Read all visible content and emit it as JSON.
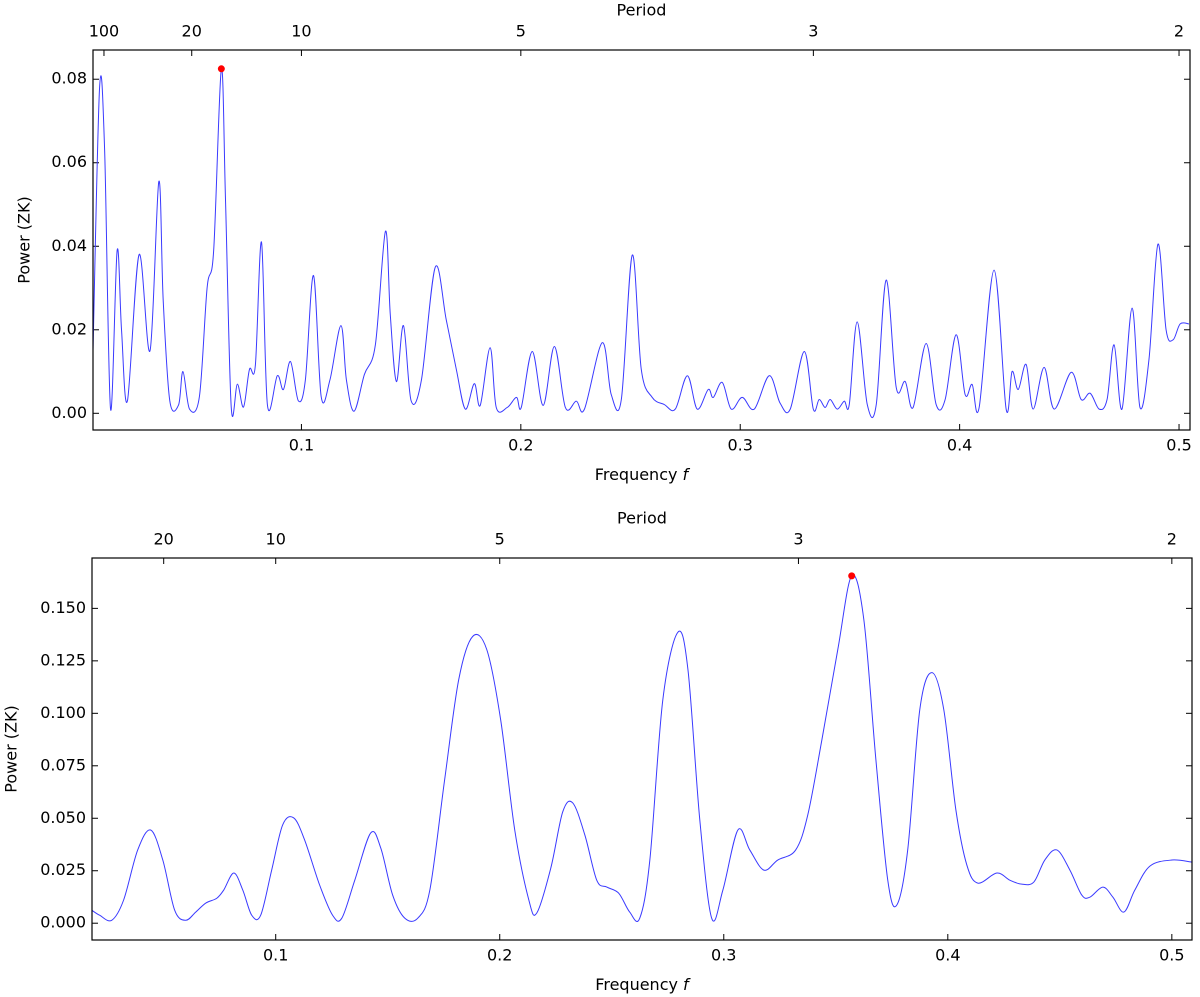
{
  "chart_data": [
    {
      "type": "line",
      "ylabel": "Power (ZK)",
      "xlabel": "Frequency",
      "xlabel_symbol": "f",
      "x2label": "Period",
      "x2_transform": "reciprocal",
      "xlim": [
        0.005,
        0.505
      ],
      "ylim": [
        -0.004,
        0.087
      ],
      "xticks": [
        0.1,
        0.2,
        0.3,
        0.4,
        0.5
      ],
      "yticks": [
        {
          "value": 0,
          "label": "0.00"
        },
        {
          "value": 0.02,
          "label": "0.02"
        },
        {
          "value": 0.04,
          "label": "0.04"
        },
        {
          "value": 0.06,
          "label": "0.06"
        },
        {
          "value": 0.08,
          "label": "0.08"
        }
      ],
      "x2ticks": [
        100,
        20,
        10,
        5,
        3,
        2
      ],
      "peak": {
        "x": 0.0635,
        "y": 0.0825,
        "color": "#ff0000"
      },
      "series": [
        {
          "color": "#3a3aff",
          "x": [
            0.005,
            0.008,
            0.0103,
            0.013,
            0.016,
            0.018,
            0.0207,
            0.026,
            0.031,
            0.035,
            0.037,
            0.04,
            0.044,
            0.046,
            0.049,
            0.0535,
            0.057,
            0.06,
            0.0635,
            0.0654,
            0.068,
            0.0708,
            0.0736,
            0.0763,
            0.079,
            0.0818,
            0.0845,
            0.089,
            0.0918,
            0.095,
            0.0986,
            0.1018,
            0.1055,
            0.109,
            0.113,
            0.118,
            0.1205,
            0.124,
            0.1287,
            0.1337,
            0.1383,
            0.1405,
            0.1433,
            0.1465,
            0.15,
            0.1547,
            0.161,
            0.166,
            0.1706,
            0.1747,
            0.1788,
            0.1815,
            0.186,
            0.1888,
            0.1938,
            0.198,
            0.2002,
            0.2052,
            0.2102,
            0.2153,
            0.2203,
            0.2253,
            0.229,
            0.2371,
            0.2412,
            0.2458,
            0.2508,
            0.2549,
            0.2599,
            0.2654,
            0.2704,
            0.2759,
            0.2804,
            0.2854,
            0.2877,
            0.2918,
            0.2959,
            0.3009,
            0.3064,
            0.3132,
            0.3182,
            0.3228,
            0.3292,
            0.3333,
            0.336,
            0.3387,
            0.341,
            0.3442,
            0.3474,
            0.3497,
            0.3533,
            0.3579,
            0.362,
            0.3665,
            0.3711,
            0.3752,
            0.3788,
            0.3847,
            0.3893,
            0.3934,
            0.3984,
            0.4025,
            0.4057,
            0.4089,
            0.4157,
            0.4212,
            0.4239,
            0.4267,
            0.4303,
            0.4335,
            0.4385,
            0.4431,
            0.4508,
            0.4554,
            0.4595,
            0.4636,
            0.4672,
            0.4704,
            0.474,
            0.4786,
            0.4822,
            0.4863,
            0.4904,
            0.4941,
            0.4973,
            0.5005,
            0.5045
          ],
          "values": [
            0.015,
            0.078,
            0.063,
            0.001,
            0.039,
            0.02,
            0.003,
            0.038,
            0.015,
            0.0555,
            0.027,
            0.003,
            0.002,
            0.01,
            0.001,
            0.004,
            0.03,
            0.039,
            0.0825,
            0.051,
            0.0015,
            0.007,
            0.0015,
            0.0105,
            0.0115,
            0.041,
            0.002,
            0.009,
            0.0057,
            0.0124,
            0.003,
            0.008,
            0.033,
            0.004,
            0.008,
            0.021,
            0.008,
            0.0005,
            0.0093,
            0.0164,
            0.0436,
            0.0236,
            0.0076,
            0.021,
            0.003,
            0.008,
            0.035,
            0.0224,
            0.0105,
            0.001,
            0.0071,
            0.0019,
            0.0157,
            0.0014,
            0.0014,
            0.0038,
            0.0014,
            0.0148,
            0.0019,
            0.016,
            0.0014,
            0.0029,
            0.001,
            0.0169,
            0.0045,
            0.0033,
            0.0379,
            0.0105,
            0.0038,
            0.0021,
            0.001,
            0.009,
            0.001,
            0.0057,
            0.0038,
            0.0074,
            0.001,
            0.0038,
            0.001,
            0.009,
            0.0024,
            0.001,
            0.0148,
            0.001,
            0.0033,
            0.0014,
            0.0033,
            0.001,
            0.0029,
            0.0021,
            0.0219,
            0.0021,
            0.0021,
            0.0319,
            0.0062,
            0.0076,
            0.0014,
            0.0167,
            0.0021,
            0.0033,
            0.0188,
            0.0045,
            0.0069,
            0.0014,
            0.0343,
            0.001,
            0.01,
            0.0057,
            0.0117,
            0.001,
            0.011,
            0.001,
            0.0098,
            0.0033,
            0.0048,
            0.001,
            0.0033,
            0.0164,
            0.001,
            0.0252,
            0.0014,
            0.0129,
            0.0405,
            0.02,
            0.0176,
            0.0214,
            0.0214
          ]
        }
      ]
    },
    {
      "type": "line",
      "ylabel": "Power (ZK)",
      "xlabel": "Frequency",
      "xlabel_symbol": "f",
      "x2label": "Period",
      "x2_transform": "reciprocal",
      "xlim": [
        0.018,
        0.509
      ],
      "ylim": [
        -0.008,
        0.174
      ],
      "xticks": [
        0.1,
        0.2,
        0.3,
        0.4,
        0.5
      ],
      "yticks": [
        {
          "value": 0,
          "label": "0.000"
        },
        {
          "value": 0.025,
          "label": "0.025"
        },
        {
          "value": 0.05,
          "label": "0.050"
        },
        {
          "value": 0.075,
          "label": "0.075"
        },
        {
          "value": 0.1,
          "label": "0.100"
        },
        {
          "value": 0.125,
          "label": "0.125"
        },
        {
          "value": 0.15,
          "label": "0.150"
        }
      ],
      "x2ticks": [
        20,
        10,
        5,
        3,
        2
      ],
      "peak": {
        "x": 0.3571,
        "y": 0.1655,
        "color": "#ff0000"
      },
      "series": [
        {
          "color": "#3a3aff",
          "x": [
            0.0179,
            0.0214,
            0.0268,
            0.0321,
            0.0384,
            0.0442,
            0.0496,
            0.0549,
            0.0598,
            0.0643,
            0.0688,
            0.0737,
            0.0768,
            0.0813,
            0.0853,
            0.0893,
            0.0933,
            0.0982,
            0.1031,
            0.108,
            0.1129,
            0.1196,
            0.1254,
            0.1295,
            0.1353,
            0.1424,
            0.1469,
            0.1522,
            0.1576,
            0.1634,
            0.1688,
            0.1754,
            0.1817,
            0.1879,
            0.1942,
            0.2004,
            0.2067,
            0.213,
            0.2165,
            0.2228,
            0.2281,
            0.2326,
            0.238,
            0.2433,
            0.2478,
            0.2531,
            0.258,
            0.2625,
            0.267,
            0.2728,
            0.2795,
            0.284,
            0.2893,
            0.2946,
            0.2996,
            0.3063,
            0.3116,
            0.3179,
            0.3241,
            0.3321,
            0.3375,
            0.3438,
            0.3509,
            0.3571,
            0.3625,
            0.3679,
            0.3732,
            0.3772,
            0.3821,
            0.3875,
            0.3929,
            0.3982,
            0.4036,
            0.4085,
            0.4134,
            0.4219,
            0.4277,
            0.433,
            0.4384,
            0.4433,
            0.4487,
            0.4545,
            0.4598,
            0.4634,
            0.4692,
            0.4737,
            0.4786,
            0.4835,
            0.4902,
            0.5,
            0.5089
          ],
          "values": [
            0.0062,
            0.0038,
            0.0014,
            0.011,
            0.0349,
            0.0444,
            0.0301,
            0.0062,
            0.0014,
            0.0053,
            0.0096,
            0.0119,
            0.0158,
            0.0239,
            0.0158,
            0.0038,
            0.0038,
            0.0253,
            0.0468,
            0.0502,
            0.0397,
            0.0182,
            0.0038,
            0.0024,
            0.0205,
            0.043,
            0.0358,
            0.0134,
            0.0024,
            0.0024,
            0.0158,
            0.0683,
            0.1161,
            0.1366,
            0.1304,
            0.097,
            0.0444,
            0.011,
            0.0048,
            0.0263,
            0.053,
            0.0573,
            0.042,
            0.0205,
            0.0172,
            0.0143,
            0.0053,
            0.0024,
            0.0301,
            0.1065,
            0.1386,
            0.1209,
            0.0492,
            0.0024,
            0.0158,
            0.0444,
            0.0349,
            0.0253,
            0.0301,
            0.0349,
            0.0516,
            0.0874,
            0.1304,
            0.1655,
            0.1448,
            0.0779,
            0.0205,
            0.0086,
            0.0349,
            0.1018,
            0.1194,
            0.1018,
            0.054,
            0.0277,
            0.0191,
            0.0239,
            0.0205,
            0.0186,
            0.0196,
            0.0301,
            0.0349,
            0.0253,
            0.0134,
            0.0124,
            0.0172,
            0.0124,
            0.0053,
            0.0158,
            0.0272,
            0.0301,
            0.0291
          ]
        }
      ]
    }
  ]
}
